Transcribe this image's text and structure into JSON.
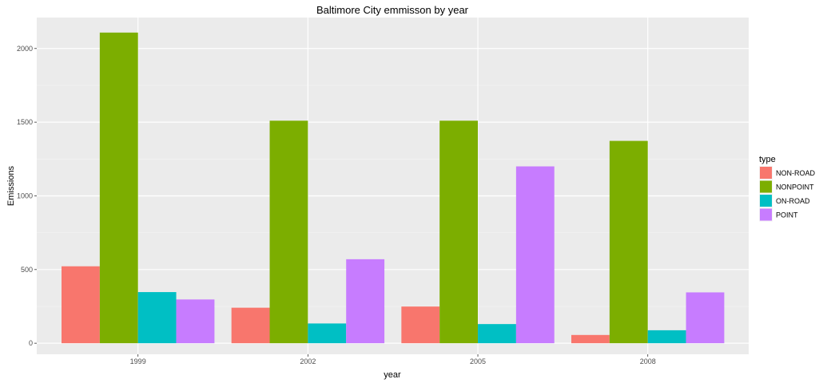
{
  "chart_data": {
    "type": "bar",
    "title": "Baltimore City emmisson by year",
    "xlabel": "year",
    "ylabel": "Emissions",
    "categories": [
      "1999",
      "2002",
      "2005",
      "2008"
    ],
    "yticks": [
      0,
      500,
      1000,
      1500,
      2000
    ],
    "ylim": [
      -75,
      2210
    ],
    "grid": true,
    "legend": {
      "title": "type",
      "position": "right"
    },
    "series": [
      {
        "name": "NON-ROAD",
        "color": "#f8766d",
        "values": [
          522,
          241,
          249,
          56
        ]
      },
      {
        "name": "NONPOINT",
        "color": "#7cae00",
        "values": [
          2108,
          1510,
          1510,
          1373
        ]
      },
      {
        "name": "ON-ROAD",
        "color": "#00bfc4",
        "values": [
          347,
          134,
          130,
          88
        ]
      },
      {
        "name": "POINT",
        "color": "#c77cff",
        "values": [
          297,
          570,
          1200,
          345
        ]
      }
    ]
  }
}
